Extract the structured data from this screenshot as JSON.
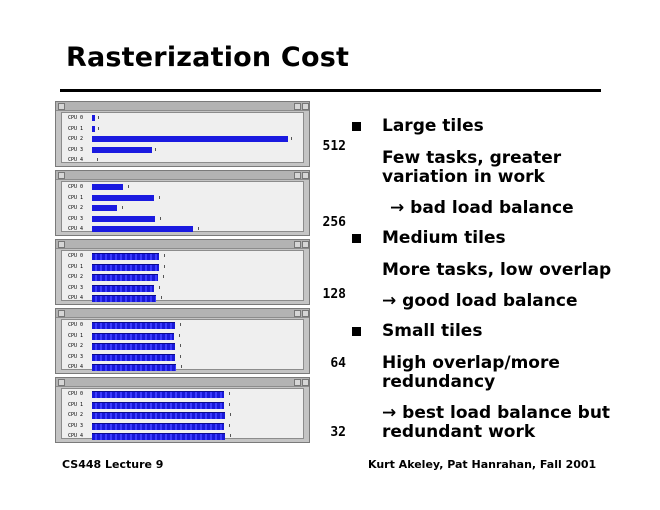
{
  "slide": {
    "title": "Rasterization Cost",
    "footer_left": "CS448 Lecture 9",
    "footer_right": "Kurt Akeley, Pat Hanrahan, Fall 2001"
  },
  "panels": [
    {
      "tile_size": "512",
      "cpus": [
        {
          "label": "CPU 0",
          "load": 0.015
        },
        {
          "label": "CPU 1",
          "load": 0.015
        },
        {
          "label": "CPU 2",
          "load": 0.98
        },
        {
          "label": "CPU 3",
          "load": 0.3
        },
        {
          "label": "CPU 4",
          "load": 0.0
        }
      ]
    },
    {
      "tile_size": "256",
      "cpus": [
        {
          "label": "CPU 0",
          "load": 0.155
        },
        {
          "label": "CPU 1",
          "load": 0.31
        },
        {
          "label": "CPU 2",
          "load": 0.125
        },
        {
          "label": "CPU 3",
          "load": 0.315
        },
        {
          "label": "CPU 4",
          "load": 0.505
        }
      ]
    },
    {
      "tile_size": "128",
      "cpus": [
        {
          "label": "CPU 0",
          "load": 0.335
        },
        {
          "label": "CPU 1",
          "load": 0.335
        },
        {
          "label": "CPU 2",
          "load": 0.33
        },
        {
          "label": "CPU 3",
          "load": 0.31
        },
        {
          "label": "CPU 4",
          "load": 0.32
        }
      ]
    },
    {
      "tile_size": "64",
      "cpus": [
        {
          "label": "CPU 0",
          "load": 0.415
        },
        {
          "label": "CPU 1",
          "load": 0.41
        },
        {
          "label": "CPU 2",
          "load": 0.415
        },
        {
          "label": "CPU 3",
          "load": 0.415
        },
        {
          "label": "CPU 4",
          "load": 0.42
        }
      ]
    },
    {
      "tile_size": "32",
      "cpus": [
        {
          "label": "CPU 0",
          "load": 0.66
        },
        {
          "label": "CPU 1",
          "load": 0.66
        },
        {
          "label": "CPU 2",
          "load": 0.665
        },
        {
          "label": "CPU 3",
          "load": 0.66
        },
        {
          "label": "CPU 4",
          "load": 0.665
        }
      ]
    }
  ],
  "bullets": [
    {
      "heading": "Large tiles",
      "detail": "Few tasks, greater variation in work",
      "result": "→ bad load balance"
    },
    {
      "heading": "Medium tiles",
      "detail": "More tasks, low overlap",
      "result": "→ good load balance"
    },
    {
      "heading": "Small tiles",
      "detail": "High overlap/more redundancy",
      "result": "→ best load balance but redundant work"
    }
  ]
}
